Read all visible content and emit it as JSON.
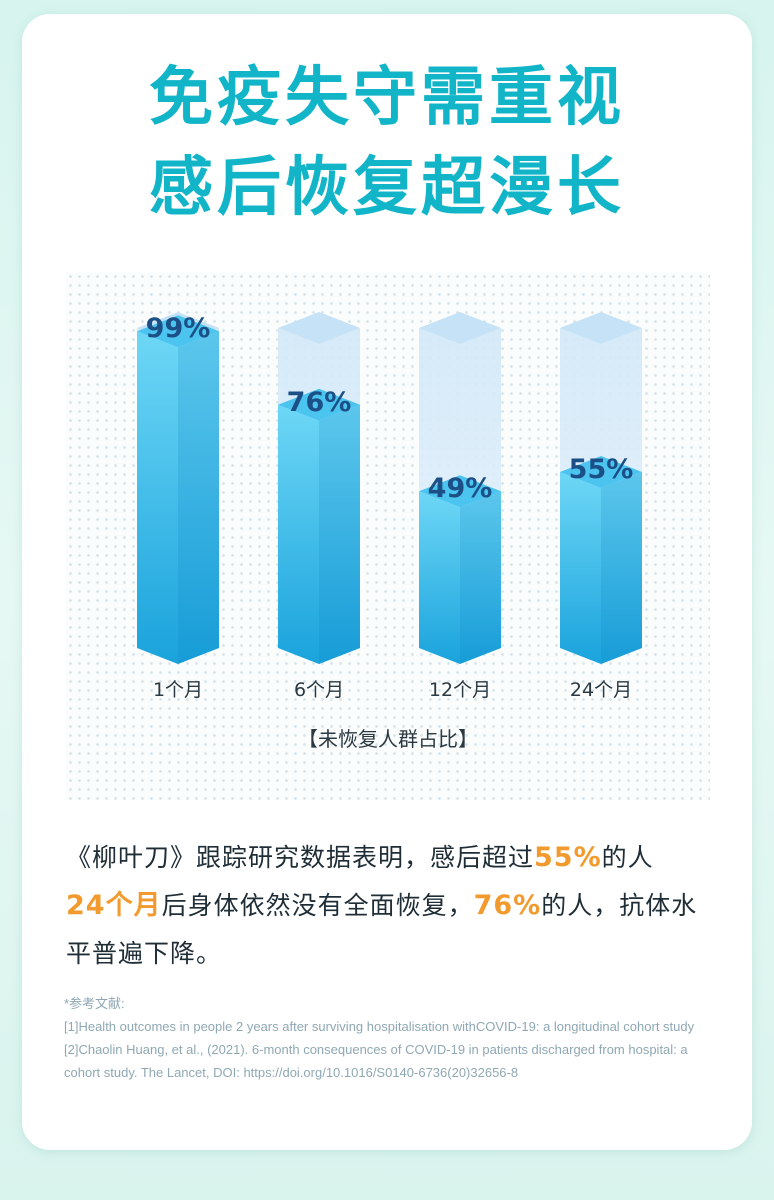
{
  "title": {
    "line1": "免疫失守需重视",
    "line2": "感后恢复超漫长"
  },
  "colors": {
    "title": "#12b5c8",
    "bar_fill_top": "#6ed7f6",
    "bar_fill_bottom": "#1aa3dc",
    "bar_empty": "#dcecf8",
    "value_label": "#1b4f86",
    "highlight": "#f29a2e"
  },
  "chart_data": {
    "type": "bar",
    "categories": [
      "1个月",
      "6个月",
      "12个月",
      "24个月"
    ],
    "values": [
      99,
      76,
      49,
      55
    ],
    "value_labels": [
      "99%",
      "76%",
      "49%",
      "55%"
    ],
    "caption": "【未恢复人群占比】",
    "ylim": [
      0,
      100
    ],
    "unit": "%",
    "grid": false
  },
  "body": {
    "p1": "《柳叶刀》跟踪研究数据表明，感后超过",
    "h1": "55%",
    "p2": "的人",
    "h2": "24个月",
    "p3": "后身体依然没有全面恢复，",
    "h3": "76%",
    "p4": "的人，抗体水平普遍下降。"
  },
  "references": {
    "heading": "*参考文献:",
    "items": [
      "[1]Health outcomes in people 2 years after surviving hospitalisation withCOVID-19: a longitudinal cohort study",
      "[2]Chaolin Huang, et al., (2021). 6-month consequences of COVID-19 in patients discharged from hospital: a cohort study. The Lancet, DOI: https://doi.org/10.1016/S0140-6736(20)32656-8"
    ]
  }
}
